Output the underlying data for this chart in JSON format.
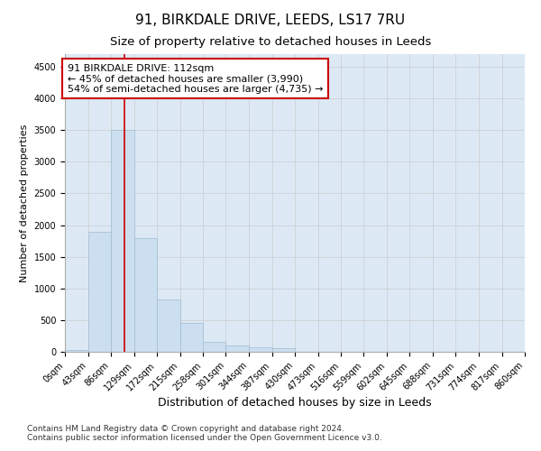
{
  "title_line1": "91, BIRKDALE DRIVE, LEEDS, LS17 7RU",
  "title_line2": "Size of property relative to detached houses in Leeds",
  "xlabel": "Distribution of detached houses by size in Leeds",
  "ylabel": "Number of detached properties",
  "footnote": "Contains HM Land Registry data © Crown copyright and database right 2024.\nContains public sector information licensed under the Open Government Licence v3.0.",
  "bar_edges": [
    0,
    43,
    86,
    129,
    172,
    215,
    258,
    301,
    344,
    387,
    430,
    473,
    516,
    559,
    602,
    645,
    688,
    731,
    774,
    817,
    860
  ],
  "bar_heights": [
    30,
    1900,
    3500,
    1800,
    820,
    450,
    155,
    95,
    65,
    55,
    0,
    0,
    0,
    0,
    0,
    0,
    0,
    0,
    0,
    0
  ],
  "bar_color": "#ccdff0",
  "bar_edge_color": "#a0bcd0",
  "vline_x": 112,
  "vline_color": "#cc0000",
  "annotation_text_line1": "91 BIRKDALE DRIVE: 112sqm",
  "annotation_text_line2": "← 45% of detached houses are smaller (3,990)",
  "annotation_text_line3": "54% of semi-detached houses are larger (4,735) →",
  "annotation_box_color": "#cc0000",
  "annotation_bg_color": "#ffffff",
  "ylim": [
    0,
    4700
  ],
  "yticks": [
    0,
    500,
    1000,
    1500,
    2000,
    2500,
    3000,
    3500,
    4000,
    4500
  ],
  "grid_color": "#cccccc",
  "background_color": "#dce9f5",
  "title1_fontsize": 11,
  "title2_fontsize": 9.5,
  "xlabel_fontsize": 9,
  "ylabel_fontsize": 8,
  "tick_label_fontsize": 7,
  "annotation_fontsize": 8
}
